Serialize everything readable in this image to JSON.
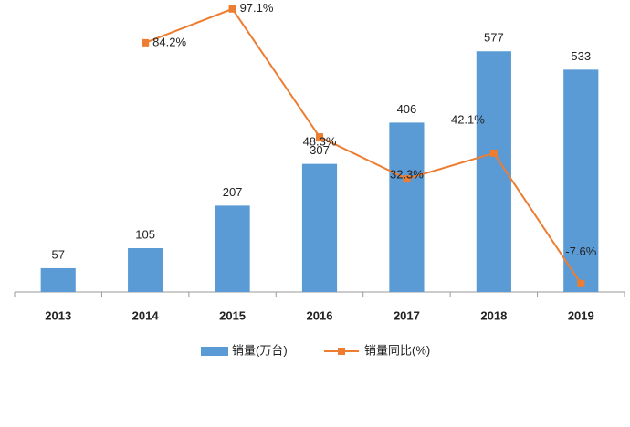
{
  "chart_data": {
    "type": "bar-line",
    "categories": [
      "2013",
      "2014",
      "2015",
      "2016",
      "2017",
      "2018",
      "2019"
    ],
    "series": [
      {
        "name": "销量(万台)",
        "type": "bar",
        "color": "#5b9bd5",
        "values": [
          57,
          105,
          207,
          307,
          406,
          577,
          533
        ]
      },
      {
        "name": "销量同比(%)",
        "type": "line",
        "axis": "y2",
        "color": "#ed7d31",
        "values": [
          null,
          84.2,
          97.1,
          48.3,
          32.3,
          42.1,
          -7.6
        ],
        "value_labels": [
          null,
          "84.2%",
          "97.1%",
          "48.3%",
          "32.3%",
          "42.1%",
          "-7.6%"
        ]
      }
    ],
    "ylim": [
      0,
      700
    ],
    "y2lim": [
      -10.8,
      100.5
    ],
    "legend": "bottom"
  }
}
